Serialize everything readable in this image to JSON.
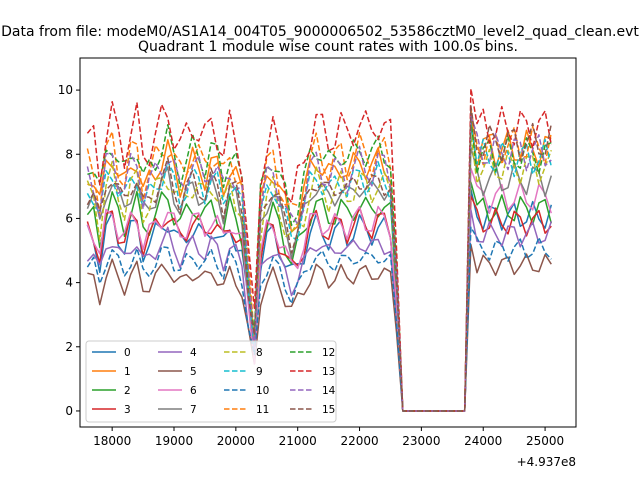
{
  "chart_data": {
    "type": "line",
    "suptitle": "Data from file: modeM0/AS1A14_004T05_9000006502_53586cztM0_level2_quad_clean.evt",
    "title": "Quadrant 1 module wise count rates with 100.0s bins.",
    "xlabel": "",
    "ylabel": "",
    "x_offset_label": "+4.937e8",
    "x_offset": 493700000,
    "xlim": [
      17480,
      25500
    ],
    "ylim": [
      -0.5,
      11.0
    ],
    "xticks": [
      18000,
      19000,
      20000,
      21000,
      22000,
      23000,
      24000,
      25000
    ],
    "yticks": [
      0,
      2,
      4,
      6,
      8,
      10
    ],
    "legend_position": "lower-left",
    "legend_columns": 4,
    "grid": false,
    "x_start": 17600,
    "bin_width_s": 100,
    "bins": 76,
    "gap_zero_start": 22600,
    "gap_zero_end": 23700,
    "shape": [
      0.94,
      0.92,
      0.8,
      0.97,
      1.02,
      0.93,
      0.88,
      0.97,
      1.0,
      0.86,
      0.9,
      0.95,
      0.99,
      1.02,
      0.95,
      0.9,
      0.94,
      0.98,
      0.96,
      0.93,
      0.98,
      0.95,
      0.88,
      0.97,
      0.92,
      0.85,
      0.55,
      0.3,
      0.8,
      0.92,
      0.96,
      0.88,
      0.8,
      0.73,
      0.78,
      0.85,
      0.95,
      1.0,
      0.96,
      0.92,
      0.95,
      0.98,
      0.93,
      0.96,
      1.0,
      0.97,
      0.95,
      0.99,
      0.98,
      0.94,
      0.9,
      0.97,
      0.95,
      0.92
    ],
    "series": [
      {
        "name": "0",
        "color": "#1f77b4",
        "dashed": false,
        "level": 5.8,
        "post": 6.4
      },
      {
        "name": "1",
        "color": "#ff7f0e",
        "dashed": false,
        "level": 7.9,
        "post": 8.6
      },
      {
        "name": "2",
        "color": "#2ca02c",
        "dashed": false,
        "level": 6.5,
        "post": 6.6
      },
      {
        "name": "3",
        "color": "#d62728",
        "dashed": false,
        "level": 6.0,
        "post": 6.2
      },
      {
        "name": "4",
        "color": "#9467bd",
        "dashed": false,
        "level": 5.3,
        "post": 5.8
      },
      {
        "name": "5",
        "color": "#8c564b",
        "dashed": false,
        "level": 4.4,
        "post": 4.8
      },
      {
        "name": "6",
        "color": "#e377c2",
        "dashed": false,
        "level": 6.1,
        "post": 7.0
      },
      {
        "name": "7",
        "color": "#7f7f7f",
        "dashed": false,
        "level": 7.1,
        "post": 7.6
      },
      {
        "name": "8",
        "color": "#bcbd22",
        "dashed": true,
        "level": 7.2,
        "post": 8.0
      },
      {
        "name": "9",
        "color": "#17becf",
        "dashed": true,
        "level": 7.4,
        "post": 8.3
      },
      {
        "name": "10",
        "color": "#1f77b4",
        "dashed": true,
        "level": 4.9,
        "post": 5.3
      },
      {
        "name": "11",
        "color": "#ff7f0e",
        "dashed": true,
        "level": 8.2,
        "post": 8.7
      },
      {
        "name": "12",
        "color": "#2ca02c",
        "dashed": true,
        "level": 8.3,
        "post": 8.4
      },
      {
        "name": "13",
        "color": "#d62728",
        "dashed": true,
        "level": 9.1,
        "post": 9.3
      },
      {
        "name": "14",
        "color": "#9467bd",
        "dashed": true,
        "level": 7.8,
        "post": 8.5
      },
      {
        "name": "15",
        "color": "#8c564b",
        "dashed": true,
        "level": 7.3,
        "post": 8.8
      }
    ]
  }
}
